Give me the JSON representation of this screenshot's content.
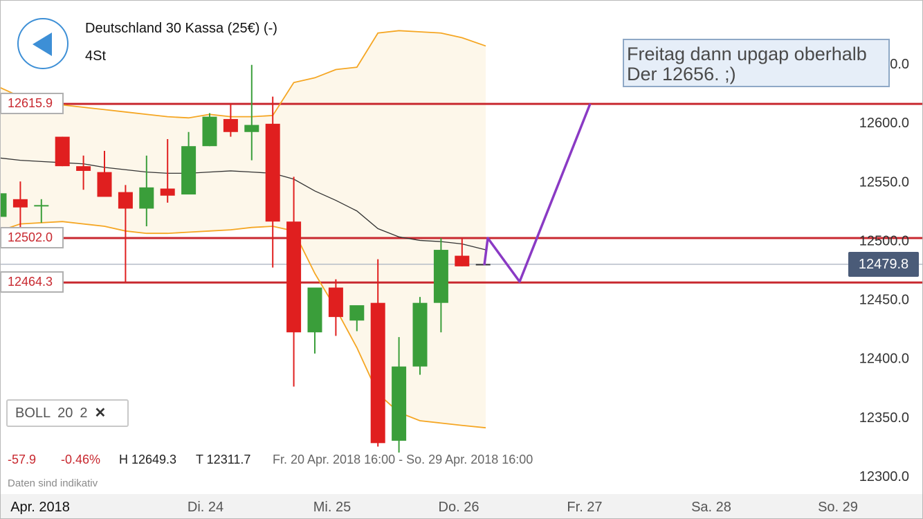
{
  "header": {
    "title": "Deutschland 30 Kassa (25€) (-)",
    "interval": "4St"
  },
  "colors": {
    "up": "#3a9e3a",
    "down": "#e01f1f",
    "band": "#f5a623",
    "band_fill": "#fdf7ea",
    "middle_band": "#333333",
    "level_line": "#c8282f",
    "projection": "#8a3ac4",
    "price_tag": "#4a5b78"
  },
  "levels": [
    {
      "value": 12615.9,
      "label": "12615.9"
    },
    {
      "value": 12502.0,
      "label": "12502.0"
    },
    {
      "value": 12464.3,
      "label": "12464.3"
    }
  ],
  "current_price": {
    "value": 12479.8,
    "label": "12479.8"
  },
  "annotation": {
    "line1": "Freitag dann upgap oberhalb",
    "line2": "Der 12656. ;)"
  },
  "indicator": {
    "name": "BOLL",
    "period": "20",
    "stddev": "2"
  },
  "stats": {
    "change": "-57.9",
    "change_pct": "-0.46%",
    "high": "H 12649.3",
    "low": "T 12311.7",
    "range": "Fr. 20 Apr. 2018 16:00 - So. 29 Apr. 2018 16:00"
  },
  "disclaimer": "Daten sind indikativ",
  "chart_data": {
    "type": "candlestick",
    "y_ticks": [
      "12650.0",
      "12600.0",
      "12550.0",
      "12500.0",
      "12450.0",
      "12400.0",
      "12350.0",
      "12300.0"
    ],
    "y_tick_values": [
      12650,
      12600,
      12550,
      12500,
      12450,
      12400,
      12350,
      12300
    ],
    "x_labels": [
      "Apr. 2018",
      "Di. 24",
      "Mi. 25",
      "Do. 26",
      "Fr. 27",
      "Sa. 28",
      "So. 29"
    ],
    "candles": [
      {
        "o": 12520,
        "h": 12540,
        "l": 12520,
        "c": 12540
      },
      {
        "o": 12535,
        "h": 12550,
        "l": 12510,
        "c": 12528
      },
      {
        "o": 12530,
        "h": 12535,
        "l": 12515,
        "c": 12530
      },
      {
        "o": 12588,
        "h": 12588,
        "l": 12563,
        "c": 12563
      },
      {
        "o": 12563,
        "h": 12572,
        "l": 12543,
        "c": 12559
      },
      {
        "o": 12558,
        "h": 12576,
        "l": 12538,
        "c": 12537
      },
      {
        "o": 12541,
        "h": 12547,
        "l": 12465,
        "c": 12527
      },
      {
        "o": 12527,
        "h": 12572,
        "l": 12512,
        "c": 12545
      },
      {
        "o": 12544,
        "h": 12586,
        "l": 12532,
        "c": 12538
      },
      {
        "o": 12539,
        "h": 12592,
        "l": 12539,
        "c": 12580
      },
      {
        "o": 12580,
        "h": 12608,
        "l": 12580,
        "c": 12605
      },
      {
        "o": 12603,
        "h": 12616,
        "l": 12588,
        "c": 12592
      },
      {
        "o": 12592,
        "h": 12649,
        "l": 12568,
        "c": 12598
      },
      {
        "o": 12599,
        "h": 12622,
        "l": 12477,
        "c": 12516
      },
      {
        "o": 12516,
        "h": 12554,
        "l": 12376,
        "c": 12422
      },
      {
        "o": 12422,
        "h": 12458,
        "l": 12404,
        "c": 12460
      },
      {
        "o": 12460,
        "h": 12467,
        "l": 12419,
        "c": 12435
      },
      {
        "o": 12432,
        "h": 12443,
        "l": 12423,
        "c": 12445
      },
      {
        "o": 12447,
        "h": 12484,
        "l": 12325,
        "c": 12328
      },
      {
        "o": 12330,
        "h": 12418,
        "l": 12320,
        "c": 12393
      },
      {
        "o": 12393,
        "h": 12452,
        "l": 12386,
        "c": 12447
      },
      {
        "o": 12447,
        "h": 12502,
        "l": 12422,
        "c": 12492
      },
      {
        "o": 12487,
        "h": 12502,
        "l": 12478,
        "c": 12478
      },
      {
        "o": 12480,
        "h": 12480,
        "l": 12479,
        "c": 12479
      }
    ],
    "bollinger": {
      "period": 20,
      "stddev": 2,
      "upper": [
        12630,
        12622,
        12618,
        12615,
        12613,
        12611,
        12609,
        12607,
        12605,
        12604,
        12607,
        12605,
        12605,
        12606,
        12634,
        12638,
        12645,
        12647,
        12676,
        12678,
        12677,
        12676,
        12672,
        12665
      ],
      "middle": [
        12570,
        12568,
        12567,
        12566,
        12565,
        12562,
        12560,
        12558,
        12557,
        12557,
        12558,
        12559,
        12558,
        12557,
        12552,
        12542,
        12534,
        12525,
        12510,
        12503,
        12500,
        12499,
        12497,
        12492
      ],
      "lower": [
        12508,
        12514,
        12515,
        12516,
        12514,
        12512,
        12508,
        12506,
        12506,
        12507,
        12508,
        12509,
        12511,
        12512,
        12508,
        12472,
        12442,
        12409,
        12370,
        12354,
        12347,
        12345,
        12343,
        12341
      ]
    },
    "projection": [
      12479,
      12502,
      12465,
      12616
    ],
    "ylim": [
      12290,
      12662
    ]
  }
}
